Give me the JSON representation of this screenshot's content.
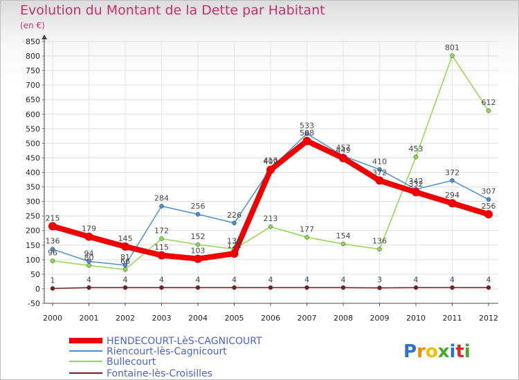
{
  "chart_data": {
    "type": "line",
    "title": "Evolution du Montant de la Dette par Habitant",
    "subtitle": "(en €)",
    "x": [
      "2000",
      "2001",
      "2002",
      "2003",
      "2004",
      "2005",
      "2006",
      "2007",
      "2008",
      "2009",
      "2010",
      "2011",
      "2012"
    ],
    "ylim": [
      -50,
      850
    ],
    "yticks": [
      -50,
      0,
      50,
      100,
      150,
      200,
      250,
      300,
      350,
      400,
      450,
      500,
      550,
      600,
      650,
      700,
      750,
      800,
      850
    ],
    "grid": true,
    "series": [
      {
        "name": "HENDECOURT-LèS-CAGNICOURT",
        "color": "#ee0000",
        "values": [
          215,
          179,
          145,
          115,
          103,
          121,
          409,
          508,
          449,
          372,
          332,
          294,
          256
        ]
      },
      {
        "name": "Riencourt-lès-Cagnicourt",
        "color": "#4a8fcf",
        "values": [
          136,
          94,
          81,
          284,
          256,
          226,
          413,
          533,
          457,
          410,
          342,
          372,
          307
        ]
      },
      {
        "name": "Bullecourt",
        "color": "#8fd94f",
        "values": [
          96,
          80,
          66,
          172,
          152,
          136,
          213,
          177,
          154,
          136,
          453,
          801,
          612
        ]
      },
      {
        "name": "Fontaine-lès-Croisilles",
        "color": "#7a1f1f",
        "values": [
          1,
          4,
          4,
          4,
          4,
          4,
          4,
          4,
          4,
          3,
          4,
          4,
          4
        ]
      }
    ]
  },
  "logo": {
    "text": "Proxiti",
    "letters": [
      "P",
      "r",
      "o",
      "x",
      "i",
      "t",
      "i"
    ],
    "colors": [
      "#2c6fd0",
      "#f08a00",
      "#f0c000",
      "#49a82c",
      "#2c6fd0",
      "#d92b2b",
      "#49a82c"
    ]
  }
}
